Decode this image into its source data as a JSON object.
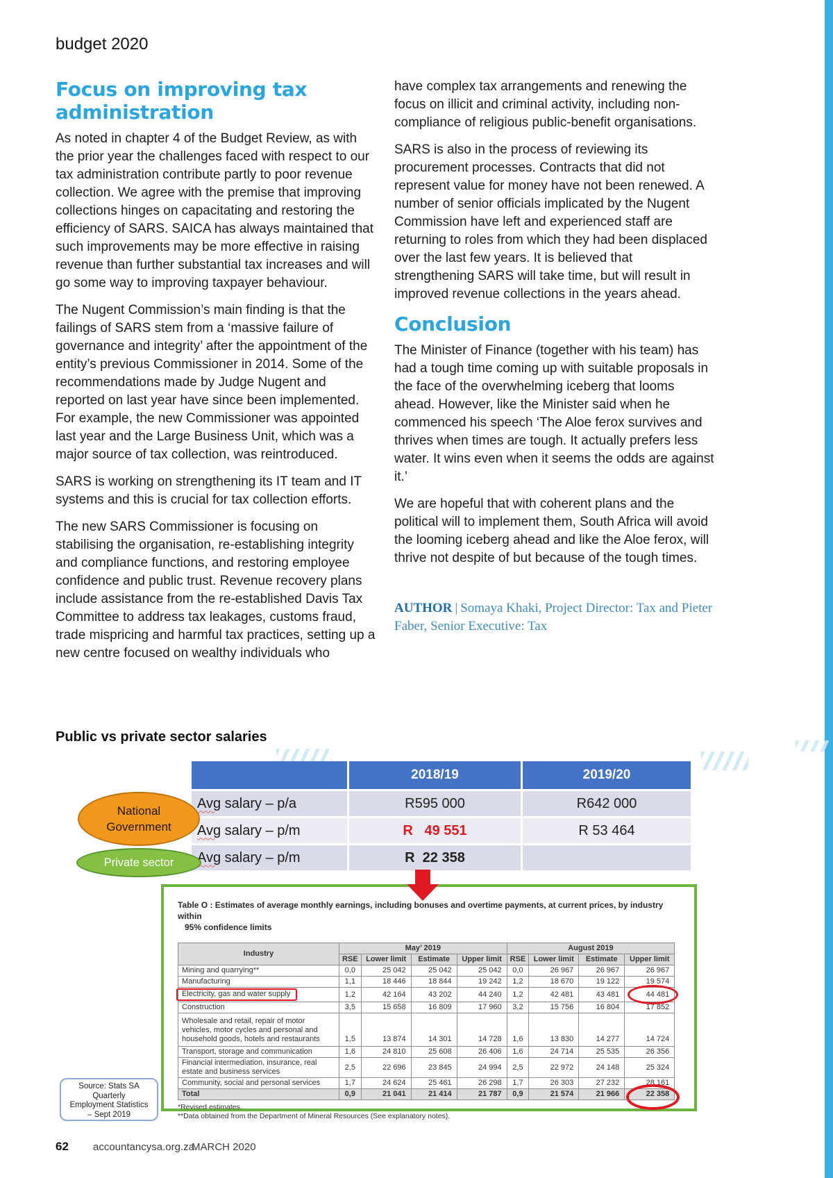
{
  "page": {
    "kicker": "budget 2020",
    "footer": {
      "page_number": "62",
      "site": "accountancysa.org.za",
      "issue": "MARCH 2020"
    }
  },
  "colors": {
    "accent_cyan": "#2AA5DE",
    "sidebar_blue": "#3BAFE3",
    "table_header_blue": "#4472C4",
    "row_lavender_dark": "#D9DBE8",
    "row_lavender_light": "#EAEBF3",
    "red_accent": "#E01A22",
    "orange_ellipse": "#F2981D",
    "green_ellipse": "#85C043",
    "green_frame": "#6CB33F"
  },
  "article": {
    "left": {
      "heading": "Focus on improving tax administration",
      "paragraphs": [
        "As noted in chapter 4 of the Budget Review, as with the prior year the challenges faced with respect to our tax administration contribute partly to poor revenue collection. We agree with the premise that improving collections hinges on capacitating and restoring the efficiency of SARS. SAICA has always maintained that such improvements may be more effective in raising revenue than further substantial tax increases and will go some way to improving taxpayer behaviour.",
        "The Nugent Commission’s main finding is that the failings of SARS stem from a ‘massive failure of governance and integrity’ after the appointment of the entity’s previous Commissioner in 2014. Some of the recommendations made by Judge Nugent and reported on last year have since been implemented. For example, the new Commissioner was appointed last year and the Large Business Unit, which was a major source of tax collection, was reintroduced.",
        "SARS is working on strengthening its IT team and IT systems and this is crucial for tax collection efforts.",
        "The new SARS Commissioner is focusing on stabilising the organisation, re-establishing integrity and compliance functions, and restoring employee confidence and public trust. Revenue recovery plans include assistance from the re-established Davis Tax Committee to address tax leakages, customs fraud, trade mispricing and harmful tax practices, setting up a new centre focused on wealthy individuals who"
      ]
    },
    "right": {
      "paragraphs": [
        "have complex tax arrangements and renewing the focus on illicit and criminal activity, including non-compliance of religious public-benefit organisations.",
        "SARS is also in the process of reviewing its procurement processes. Contracts that did not represent value for money have not been renewed. A number of senior officials implicated by the Nugent Commission have left and experienced staff are returning to roles from which they had been displaced over the last few years. It is believed that strengthening SARS will take time, but will result in improved revenue collections in the years ahead."
      ],
      "conclusion_heading": "Conclusion",
      "conclusion_paragraphs": [
        "The Minister of Finance (together with his team) has had a tough time coming up with suitable proposals in the face of the overwhelming iceberg that looms ahead. However, like the Minister said when he commenced his speech ‘The Aloe ferox survives and thrives when times are tough. It actually prefers less water. It wins even when it seems the odds are against it.’",
        "We are hopeful that with coherent plans and the political will to implement them, South Africa will avoid the looming iceberg ahead and like the Aloe ferox, will thrive not despite of but because of the tough times."
      ],
      "author_label": "AUTHOR",
      "author_separator": "|",
      "author_text": "Somaya Khaki, Project Director: Tax and Pieter Faber, Senior Executive: Tax"
    }
  },
  "salary_section": {
    "heading": "Public vs private sector salaries",
    "national_government_label": "National Government",
    "private_sector_label": "Private sector",
    "table": {
      "columns": [
        "",
        "2018/19",
        "2019/20"
      ],
      "rows": [
        {
          "label": "Avg salary – p/a",
          "y2018": "R595 000",
          "y2019": "R642 000",
          "style": "normal"
        },
        {
          "label": "Avg salary – p/m",
          "y2018": "R   49 551",
          "y2019": "R 53 464",
          "style": "red"
        },
        {
          "label": "Avg salary – p/m",
          "y2018": "R  22 358",
          "y2019": "",
          "style": "bold"
        }
      ]
    }
  },
  "table_o": {
    "title_line1": "Table O : Estimates of average monthly earnings, including bonuses and overtime payments, at current prices, by industry within",
    "title_line2": "95% confidence limits",
    "industry_header": "Industry",
    "group_headers": [
      "May’ 2019",
      "August 2019"
    ],
    "sub_headers": [
      "RSE",
      "Lower limit",
      "Estimate",
      "Upper limit"
    ],
    "rows": [
      {
        "industry": "Mining and quarrying**",
        "values": [
          "0,0",
          "25 042",
          "25 042",
          "25 042",
          "0,0",
          "26 967",
          "26 967",
          "26 967"
        ]
      },
      {
        "industry": "Manufacturing",
        "values": [
          "1,1",
          "18 446",
          "18 844",
          "19 242",
          "1,2",
          "18 670",
          "19 122",
          "19 574"
        ]
      },
      {
        "industry": "Electricity, gas and water supply",
        "values": [
          "1,2",
          "42 164",
          "43 202",
          "44 240",
          "1,2",
          "42 481",
          "43 481",
          "44 481"
        ],
        "label_boxed": true,
        "circle_last": true
      },
      {
        "industry": "Construction",
        "values": [
          "3,5",
          "15 658",
          "16 809",
          "17 960",
          "3,2",
          "15 756",
          "16 804",
          "17 852"
        ]
      },
      {
        "industry": "Wholesale and retail, repair of motor vehicles, motor cycles and personal and household goods, hotels and restaurants",
        "values": [
          "1,5",
          "13 874",
          "14 301",
          "14 728",
          "1,6",
          "13 830",
          "14 277",
          "14 724"
        ],
        "tall": true
      },
      {
        "industry": "Transport, storage and communication",
        "values": [
          "1,6",
          "24 810",
          "25 608",
          "26 406",
          "1,6",
          "24 714",
          "25 535",
          "26 356"
        ]
      },
      {
        "industry": "Financial intermediation, insurance, real estate and business services",
        "values": [
          "2,5",
          "22 696",
          "23 845",
          "24 994",
          "2,5",
          "22 972",
          "24 148",
          "25 324"
        ]
      },
      {
        "industry": "Community, social and personal services",
        "values": [
          "1,7",
          "24 624",
          "25 461",
          "26 298",
          "1,7",
          "26 303",
          "27 232",
          "28 161"
        ]
      },
      {
        "industry": "Total",
        "values": [
          "0,9",
          "21 041",
          "21 414",
          "21 787",
          "0,9",
          "21 574",
          "21 966",
          "22 358"
        ],
        "total": true,
        "circle_last": true
      }
    ],
    "footnotes": [
      "*Revised estimates.",
      "**Data obtained from the Department of Mineral Resources (See explanatory notes)."
    ]
  },
  "source_box": {
    "lines": [
      "Source: Stats SA",
      "Quarterly",
      "Employment Statistics",
      "– Sept 2019"
    ]
  }
}
